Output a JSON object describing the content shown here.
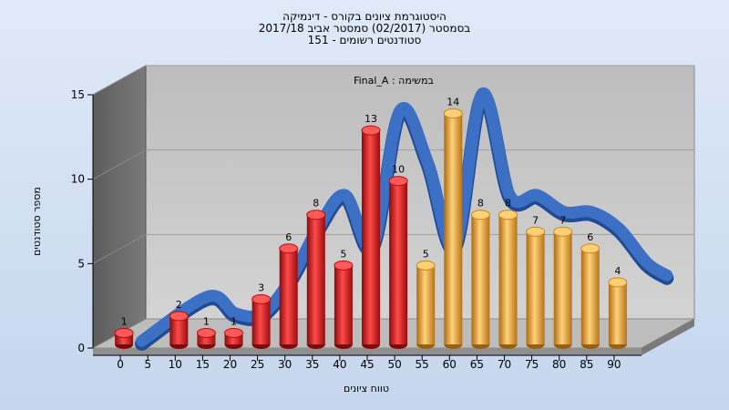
{
  "chart_data": {
    "type": "bar",
    "title_lines": [
      "היסטוגרמת ציונים בקורס - דינמיקה",
      "בסמסטר  (02/2017)  סמסטר אביב 2017/18",
      "סטודנטים רשומים - 151"
    ],
    "annotation": "Final_A : במשימה",
    "xlabel": "טווח ציונים",
    "ylabel": "מספר סטודנטים",
    "categories": [
      "0",
      "5",
      "10",
      "15",
      "20",
      "25",
      "30",
      "35",
      "40",
      "45",
      "50",
      "55",
      "60",
      "65",
      "70",
      "75",
      "80",
      "85",
      "90"
    ],
    "values": [
      1,
      0,
      2,
      1,
      1,
      3,
      6,
      8,
      5,
      13,
      10,
      5,
      14,
      8,
      8,
      7,
      7,
      6,
      4
    ],
    "bar_colors": [
      "red",
      "red",
      "red",
      "red",
      "red",
      "red",
      "red",
      "red",
      "red",
      "red",
      "red",
      "orange",
      "orange",
      "orange",
      "orange",
      "orange",
      "orange",
      "orange",
      "orange"
    ],
    "yticks": [
      0,
      5,
      10,
      15
    ],
    "ylim": [
      0,
      15
    ],
    "curve": true,
    "colors": {
      "red": "#e11a1a",
      "orange": "#e8a232",
      "curve": "#3b70c4",
      "wall": "#6e6e6e",
      "floor": "#b8b8b8",
      "plot_bg": "#c9c9c9"
    }
  }
}
